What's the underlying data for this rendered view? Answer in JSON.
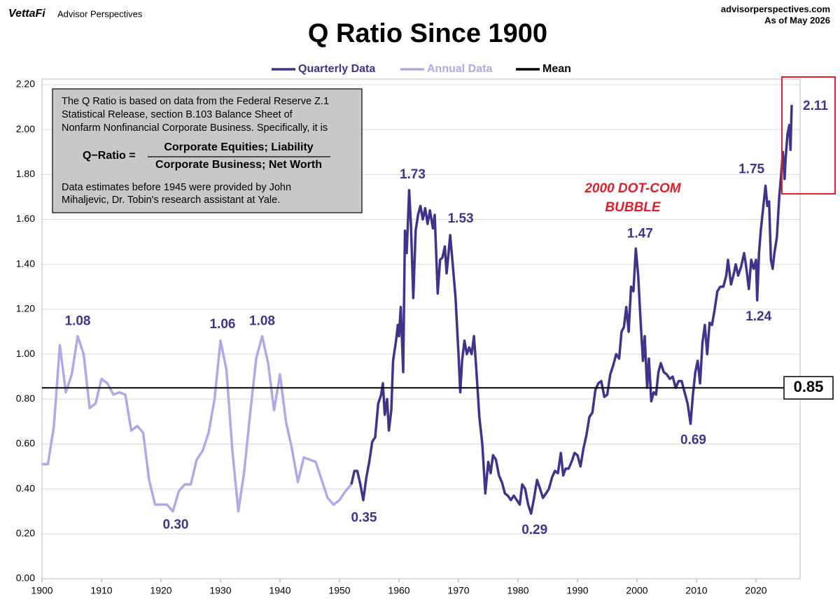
{
  "header": {
    "logo": "VettaFi",
    "brand": "Advisor Perspectives",
    "site": "advisorperspectives.com",
    "date": "As of May 2026"
  },
  "chart_data": {
    "type": "line",
    "title": "Q Ratio Since 1900",
    "xlim": [
      1900,
      2027
    ],
    "ylim": [
      0,
      2.2
    ],
    "xticks": [
      1900,
      1910,
      1920,
      1930,
      1940,
      1950,
      1960,
      1970,
      1980,
      1990,
      2000,
      2010,
      2020
    ],
    "yticks": [
      {
        "value": 0,
        "label": "0.00"
      },
      {
        "value": 0.2,
        "label": "0.20"
      },
      {
        "value": 0.4,
        "label": "0.40"
      },
      {
        "value": 0.6,
        "label": "0.60"
      },
      {
        "value": 0.8,
        "label": "0.80"
      },
      {
        "value": 1.0,
        "label": "1.00"
      },
      {
        "value": 1.2,
        "label": "1.20"
      },
      {
        "value": 1.4,
        "label": "1.40"
      },
      {
        "value": 1.6,
        "label": "1.60"
      },
      {
        "value": 1.8,
        "label": "1.80"
      },
      {
        "value": 2.0,
        "label": "2.00"
      },
      {
        "value": 2.2,
        "label": "2.20"
      }
    ],
    "grid": true,
    "legend": "top",
    "series": [
      {
        "name": "Quarterly Data",
        "color": "#41338c",
        "x": [
          1952.0,
          1952.5,
          1953.0,
          1953.5,
          1954.0,
          1954.5,
          1955.0,
          1955.5,
          1956.0,
          1956.5,
          1957.0,
          1957.3,
          1957.6,
          1958.0,
          1958.3,
          1958.7,
          1959.0,
          1959.5,
          1959.8,
          1960.0,
          1960.3,
          1960.7,
          1961.0,
          1961.3,
          1961.7,
          1962.0,
          1962.4,
          1962.8,
          1963.2,
          1963.6,
          1964.0,
          1964.4,
          1964.8,
          1965.2,
          1965.7,
          1966.0,
          1966.5,
          1966.9,
          1967.3,
          1967.7,
          1968.0,
          1968.3,
          1968.6,
          1969.0,
          1969.5,
          1970.0,
          1970.3,
          1970.6,
          1971.0,
          1971.4,
          1971.8,
          1972.2,
          1972.6,
          1973.0,
          1973.5,
          1974.0,
          1974.5,
          1975.0,
          1975.4,
          1975.8,
          1976.3,
          1976.8,
          1977.3,
          1977.8,
          1978.3,
          1978.8,
          1979.3,
          1979.8,
          1980.3,
          1980.7,
          1981.2,
          1981.7,
          1982.2,
          1982.7,
          1983.2,
          1983.7,
          1984.2,
          1984.7,
          1985.2,
          1985.7,
          1986.2,
          1986.7,
          1987.2,
          1987.6,
          1988.0,
          1988.5,
          1989.0,
          1989.5,
          1990.0,
          1990.5,
          1991.0,
          1991.5,
          1992.0,
          1992.5,
          1993.0,
          1993.5,
          1994.0,
          1994.5,
          1995.0,
          1995.5,
          1996.0,
          1996.5,
          1997.0,
          1997.4,
          1997.8,
          1998.2,
          1998.6,
          1999.0,
          1999.4,
          1999.8,
          2000.2,
          2000.6,
          2001.0,
          2001.3,
          2001.7,
          2002.0,
          2002.4,
          2002.8,
          2003.2,
          2003.6,
          2004.0,
          2004.5,
          2005.0,
          2005.5,
          2006.0,
          2006.5,
          2007.0,
          2007.5,
          2008.0,
          2008.5,
          2009.0,
          2009.4,
          2009.8,
          2010.2,
          2010.6,
          2011.0,
          2011.4,
          2011.8,
          2012.2,
          2012.6,
          2013.0,
          2013.5,
          2014.0,
          2014.5,
          2015.0,
          2015.3,
          2015.8,
          2016.2,
          2016.6,
          2017.0,
          2017.5,
          2018.0,
          2018.3,
          2018.8,
          2019.2,
          2019.6,
          2020.0,
          2020.2,
          2020.5,
          2020.8,
          2021.2,
          2021.6,
          2021.9,
          2022.2,
          2022.5,
          2022.8,
          2023.1,
          2023.5,
          2023.9,
          2024.2,
          2024.5,
          2024.8,
          2025.0,
          2025.3,
          2025.6,
          2025.8,
          2026.0
        ],
        "values": [
          0.42,
          0.48,
          0.48,
          0.42,
          0.35,
          0.45,
          0.52,
          0.61,
          0.63,
          0.78,
          0.82,
          0.87,
          0.73,
          0.8,
          0.66,
          0.75,
          0.97,
          1.06,
          1.13,
          1.08,
          1.21,
          0.92,
          1.55,
          1.45,
          1.73,
          1.58,
          1.25,
          1.55,
          1.62,
          1.66,
          1.6,
          1.65,
          1.58,
          1.64,
          1.56,
          1.62,
          1.27,
          1.42,
          1.43,
          1.48,
          1.36,
          1.44,
          1.53,
          1.41,
          1.25,
          1.0,
          0.83,
          0.97,
          1.06,
          1.0,
          1.03,
          1.0,
          1.08,
          0.93,
          0.72,
          0.6,
          0.38,
          0.52,
          0.47,
          0.55,
          0.53,
          0.46,
          0.43,
          0.38,
          0.37,
          0.35,
          0.37,
          0.35,
          0.33,
          0.42,
          0.4,
          0.33,
          0.29,
          0.36,
          0.44,
          0.4,
          0.36,
          0.38,
          0.4,
          0.45,
          0.48,
          0.47,
          0.56,
          0.46,
          0.49,
          0.49,
          0.52,
          0.56,
          0.55,
          0.5,
          0.58,
          0.64,
          0.72,
          0.74,
          0.84,
          0.87,
          0.88,
          0.81,
          0.82,
          0.91,
          0.95,
          1.0,
          0.98,
          1.1,
          1.12,
          1.21,
          1.1,
          1.3,
          1.28,
          1.47,
          1.35,
          1.15,
          0.97,
          1.08,
          0.85,
          0.98,
          0.79,
          0.83,
          0.82,
          0.92,
          0.96,
          0.92,
          0.91,
          0.89,
          0.9,
          0.85,
          0.88,
          0.88,
          0.83,
          0.78,
          0.69,
          0.82,
          0.92,
          0.97,
          0.87,
          1.05,
          1.13,
          1.0,
          1.14,
          1.13,
          1.19,
          1.28,
          1.3,
          1.3,
          1.35,
          1.42,
          1.31,
          1.35,
          1.4,
          1.35,
          1.39,
          1.45,
          1.4,
          1.29,
          1.42,
          1.38,
          1.42,
          1.24,
          1.45,
          1.55,
          1.65,
          1.75,
          1.66,
          1.68,
          1.42,
          1.38,
          1.45,
          1.52,
          1.7,
          1.79,
          1.9,
          1.78,
          1.88,
          1.98,
          2.02,
          1.91,
          2.11
        ]
      },
      {
        "name": "Annual Data",
        "color": "#b4a7e6",
        "x": [
          1900,
          1901,
          1902,
          1903,
          1904,
          1905,
          1906,
          1907,
          1908,
          1909,
          1910,
          1911,
          1912,
          1913,
          1914,
          1915,
          1916,
          1917,
          1918,
          1919,
          1920,
          1921,
          1922,
          1923,
          1924,
          1925,
          1926,
          1927,
          1928,
          1929,
          1930,
          1931,
          1932,
          1933,
          1934,
          1935,
          1936,
          1937,
          1938,
          1939,
          1940,
          1941,
          1942,
          1943,
          1944,
          1945,
          1946,
          1947,
          1948,
          1949,
          1950,
          1951,
          1952
        ],
        "values": [
          0.51,
          0.51,
          0.68,
          1.04,
          0.83,
          0.91,
          1.08,
          1.0,
          0.76,
          0.78,
          0.89,
          0.87,
          0.82,
          0.83,
          0.82,
          0.66,
          0.68,
          0.65,
          0.44,
          0.33,
          0.33,
          0.33,
          0.3,
          0.39,
          0.42,
          0.42,
          0.53,
          0.57,
          0.65,
          0.8,
          1.06,
          0.93,
          0.57,
          0.3,
          0.48,
          0.74,
          0.98,
          1.08,
          0.96,
          0.75,
          0.91,
          0.7,
          0.58,
          0.43,
          0.54,
          0.53,
          0.52,
          0.44,
          0.36,
          0.33,
          0.35,
          0.39,
          0.42
        ]
      }
    ],
    "mean": {
      "name": "Mean",
      "color": "#000000",
      "value": 0.85,
      "label": "0.85"
    },
    "annotations": [
      {
        "text": "1.08",
        "x": 1906,
        "y": 1.08
      },
      {
        "text": "1.06",
        "x": 1930,
        "y": 1.06
      },
      {
        "text": "1.08",
        "x": 1937,
        "y": 1.08
      },
      {
        "text": "0.30",
        "x": 1922,
        "y": 0.3
      },
      {
        "text": "0.35",
        "x": 1954,
        "y": 0.35
      },
      {
        "text": "1.73",
        "x": 1961.7,
        "y": 1.73
      },
      {
        "text": "1.53",
        "x": 1968.6,
        "y": 1.53
      },
      {
        "text": "0.29",
        "x": 1982.2,
        "y": 0.29
      },
      {
        "text": "1.47",
        "x": 1999.8,
        "y": 1.47
      },
      {
        "text": "0.69",
        "x": 2009,
        "y": 0.69
      },
      {
        "text": "1.24",
        "x": 2020.2,
        "y": 1.24
      },
      {
        "text": "1.75",
        "x": 2021.6,
        "y": 1.75
      },
      {
        "text": "2.11",
        "x": 2026,
        "y": 2.11
      }
    ],
    "callout": [
      "2000 DOT-COM",
      "BUBBLE"
    ],
    "note": {
      "lines": [
        "The Q Ratio is based on data from the Federal Reserve Z.1",
        "Statistical Release, section B.103 Balance Sheet of",
        "Nonfarm Nonfinancial Corporate Business. Specifically, it is"
      ],
      "formula_label": "Q−Ratio =",
      "numerator": "Corporate Equities; Liability",
      "denominator": "Corporate Business; Net Worth",
      "footer": [
        "Data estimates before 1945 were provided by John",
        "Mihaljevic, Dr. Tobin's research assistant at Yale."
      ]
    }
  }
}
